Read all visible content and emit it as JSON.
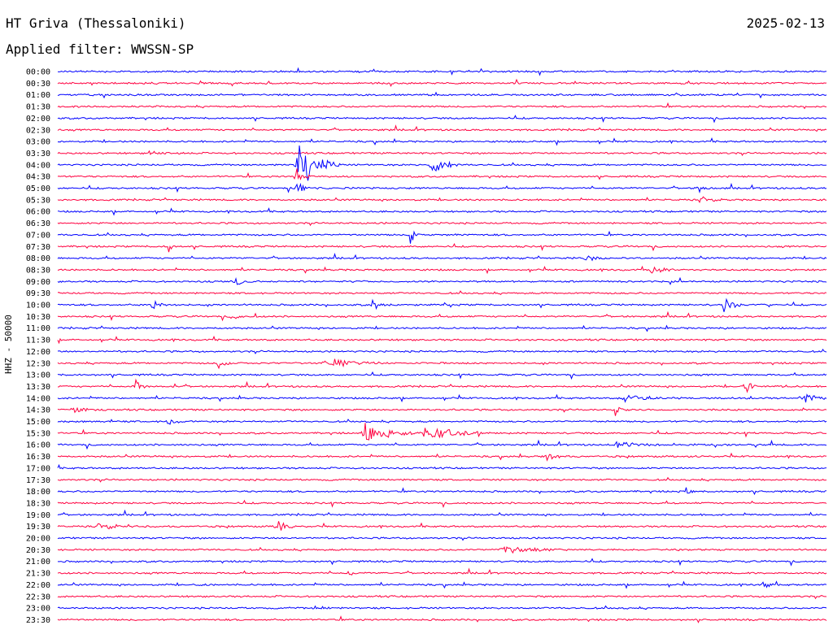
{
  "header": {
    "station": "HT Griva (Thessaloniki)",
    "date": "2025-02-13",
    "filter": "Applied filter: WWSSN-SP"
  },
  "axis": {
    "channel_label": "HHZ - 50000"
  },
  "colors": {
    "trace_a": "#0000ff",
    "trace_b": "#ff0040",
    "background": "#ffffff",
    "text": "#000000"
  },
  "chart_data": {
    "type": "line",
    "rows": [
      {
        "time": "00:00"
      },
      {
        "time": "00:30"
      },
      {
        "time": "01:00"
      },
      {
        "time": "01:30"
      },
      {
        "time": "02:00"
      },
      {
        "time": "02:30"
      },
      {
        "time": "03:00"
      },
      {
        "time": "03:30"
      },
      {
        "time": "04:00"
      },
      {
        "time": "04:30"
      },
      {
        "time": "05:00"
      },
      {
        "time": "05:30"
      },
      {
        "time": "06:00"
      },
      {
        "time": "06:30"
      },
      {
        "time": "07:00"
      },
      {
        "time": "07:30"
      },
      {
        "time": "08:00"
      },
      {
        "time": "08:30"
      },
      {
        "time": "09:00"
      },
      {
        "time": "09:30"
      },
      {
        "time": "10:00"
      },
      {
        "time": "10:30"
      },
      {
        "time": "11:00"
      },
      {
        "time": "11:30"
      },
      {
        "time": "12:00"
      },
      {
        "time": "12:30"
      },
      {
        "time": "13:00"
      },
      {
        "time": "13:30"
      },
      {
        "time": "14:00"
      },
      {
        "time": "14:30"
      },
      {
        "time": "15:00"
      },
      {
        "time": "15:30"
      },
      {
        "time": "16:00"
      },
      {
        "time": "16:30"
      },
      {
        "time": "17:00"
      },
      {
        "time": "17:30"
      },
      {
        "time": "18:00"
      },
      {
        "time": "18:30"
      },
      {
        "time": "19:00"
      },
      {
        "time": "19:30"
      },
      {
        "time": "20:00"
      },
      {
        "time": "20:30"
      },
      {
        "time": "21:00"
      },
      {
        "time": "21:30"
      },
      {
        "time": "22:00"
      },
      {
        "time": "22:30"
      },
      {
        "time": "23:00"
      },
      {
        "time": "23:30"
      }
    ],
    "events": [
      {
        "row": 7,
        "minute": 3.5,
        "dur": 1.2,
        "amp": 2
      },
      {
        "row": 8,
        "minute": 9.2,
        "dur": 1.8,
        "amp": 28
      },
      {
        "row": 8,
        "minute": 14.5,
        "dur": 1.2,
        "amp": 12
      },
      {
        "row": 9,
        "minute": 9.2,
        "dur": 0.8,
        "amp": 10
      },
      {
        "row": 10,
        "minute": 9.3,
        "dur": 0.6,
        "amp": 10
      },
      {
        "row": 10,
        "minute": 25.0,
        "dur": 0.4,
        "amp": 6
      },
      {
        "row": 11,
        "minute": 25.0,
        "dur": 1.0,
        "amp": 4
      },
      {
        "row": 14,
        "minute": 13.8,
        "dur": 0.3,
        "amp": 7
      },
      {
        "row": 15,
        "minute": 4.3,
        "dur": 0.3,
        "amp": 6
      },
      {
        "row": 16,
        "minute": 20.5,
        "dur": 1.0,
        "amp": 4
      },
      {
        "row": 17,
        "minute": 23.0,
        "dur": 1.5,
        "amp": 3
      },
      {
        "row": 18,
        "minute": 6.8,
        "dur": 0.9,
        "amp": 5
      },
      {
        "row": 20,
        "minute": 3.7,
        "dur": 0.6,
        "amp": 6
      },
      {
        "row": 20,
        "minute": 12.2,
        "dur": 0.6,
        "amp": 8
      },
      {
        "row": 20,
        "minute": 25.9,
        "dur": 0.8,
        "amp": 10
      },
      {
        "row": 21,
        "minute": 6.8,
        "dur": 0.6,
        "amp": 5
      },
      {
        "row": 25,
        "minute": 10.3,
        "dur": 2.8,
        "amp": 5
      },
      {
        "row": 25,
        "minute": 6.2,
        "dur": 0.9,
        "amp": 4
      },
      {
        "row": 27,
        "minute": 3.0,
        "dur": 0.6,
        "amp": 6
      },
      {
        "row": 27,
        "minute": 26.8,
        "dur": 0.6,
        "amp": 6
      },
      {
        "row": 28,
        "minute": 22.0,
        "dur": 1.8,
        "amp": 5
      },
      {
        "row": 28,
        "minute": 29.0,
        "dur": 1.2,
        "amp": 6
      },
      {
        "row": 29,
        "minute": 0.5,
        "dur": 1.0,
        "amp": 4
      },
      {
        "row": 29,
        "minute": 21.7,
        "dur": 0.6,
        "amp": 6
      },
      {
        "row": 30,
        "minute": 4.2,
        "dur": 0.8,
        "amp": 4
      },
      {
        "row": 31,
        "minute": 11.8,
        "dur": 2.5,
        "amp": 12
      },
      {
        "row": 31,
        "minute": 14.2,
        "dur": 2.4,
        "amp": 9
      },
      {
        "row": 32,
        "minute": 21.7,
        "dur": 1.8,
        "amp": 4
      },
      {
        "row": 33,
        "minute": 19.0,
        "dur": 1.0,
        "amp": 4
      },
      {
        "row": 36,
        "minute": 24.5,
        "dur": 0.6,
        "amp": 3
      },
      {
        "row": 39,
        "minute": 1.5,
        "dur": 1.5,
        "amp": 4
      },
      {
        "row": 39,
        "minute": 8.5,
        "dur": 0.8,
        "amp": 9
      },
      {
        "row": 41,
        "minute": 17.2,
        "dur": 2.5,
        "amp": 5
      },
      {
        "row": 43,
        "minute": 11.3,
        "dur": 0.4,
        "amp": 5
      },
      {
        "row": 44,
        "minute": 5.5,
        "dur": 0.4,
        "amp": 5
      },
      {
        "row": 44,
        "minute": 27.5,
        "dur": 0.8,
        "amp": 4
      },
      {
        "row": 46,
        "minute": 10.0,
        "dur": 0.8,
        "amp": 3
      }
    ]
  }
}
